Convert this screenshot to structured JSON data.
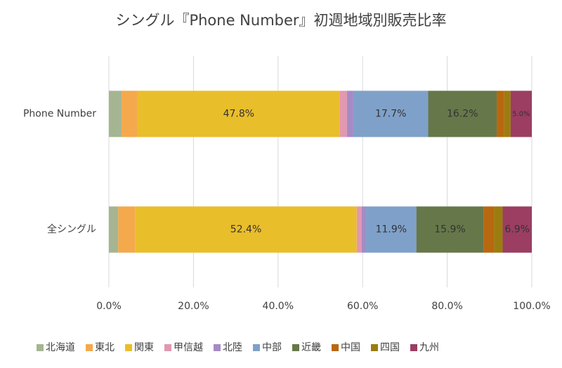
{
  "chart_data": {
    "type": "stacked-bar-horizontal",
    "title": "シングル『Phone Number』初週地域別販売比率",
    "categories": [
      "Phone Number",
      "全シングル"
    ],
    "series": [
      {
        "name": "北海道",
        "color": "#a5b592",
        "values": [
          3.0,
          2.2
        ]
      },
      {
        "name": "東北",
        "color": "#f4a94c",
        "values": [
          3.8,
          4.0
        ]
      },
      {
        "name": "関東",
        "color": "#e9be2b",
        "values": [
          47.8,
          52.4
        ],
        "value_labels": [
          "47.8%",
          "52.4%"
        ]
      },
      {
        "name": "甲信越",
        "color": "#e198b0",
        "values": [
          1.7,
          1.2
        ]
      },
      {
        "name": "北陸",
        "color": "#a58bc6",
        "values": [
          1.5,
          1.0
        ]
      },
      {
        "name": "中部",
        "color": "#7fa1c9",
        "values": [
          17.7,
          11.9
        ],
        "value_labels": [
          "17.7%",
          "11.9%"
        ]
      },
      {
        "name": "近畿",
        "color": "#66784a",
        "values": [
          16.2,
          15.9
        ],
        "value_labels": [
          "16.2%",
          "15.9%"
        ]
      },
      {
        "name": "中国",
        "color": "#b8680f",
        "values": [
          1.8,
          2.5
        ]
      },
      {
        "name": "四国",
        "color": "#9b7d0f",
        "values": [
          1.5,
          2.0
        ]
      },
      {
        "name": "九州",
        "color": "#9b3e62",
        "values": [
          5.0,
          6.9
        ],
        "value_labels": [
          "5.0%",
          "6.9%"
        ]
      }
    ],
    "xlim": [
      0,
      100
    ],
    "xticks": [
      {
        "value": 0,
        "label": "0.0%"
      },
      {
        "value": 20,
        "label": "20.0%"
      },
      {
        "value": 40,
        "label": "40.0%"
      },
      {
        "value": 60,
        "label": "60.0%"
      },
      {
        "value": 80,
        "label": "80.0%"
      },
      {
        "value": 100,
        "label": "100.0%"
      }
    ],
    "grid": true,
    "legend": "bottom"
  }
}
